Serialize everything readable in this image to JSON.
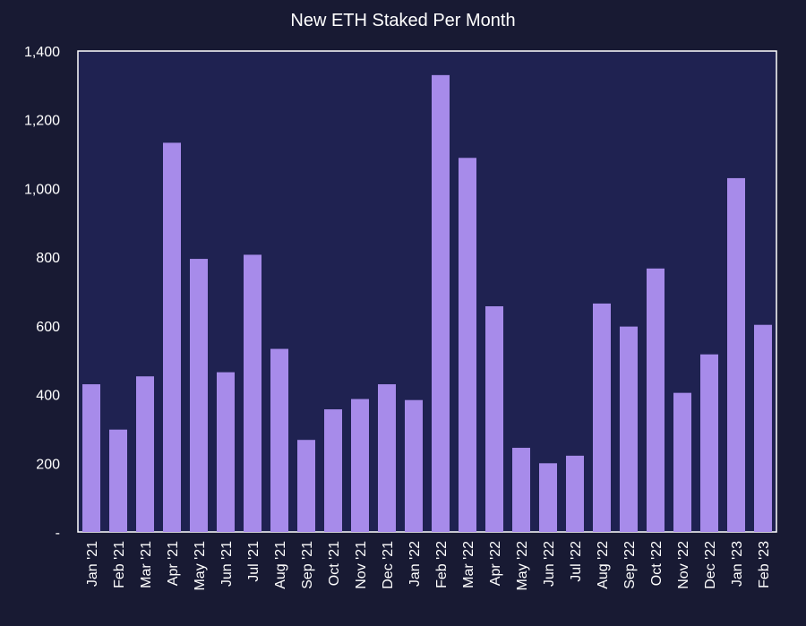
{
  "chart_data": {
    "type": "bar",
    "title": "New ETH Staked Per Month",
    "xlabel": "",
    "ylabel": "",
    "categories": [
      "Jan '21",
      "Feb '21",
      "Mar '21",
      "Apr '21",
      "May '21",
      "Jun '21",
      "Jul '21",
      "Aug '21",
      "Sep '21",
      "Oct '21",
      "Nov '21",
      "Dec '21",
      "Jan '22",
      "Feb '22",
      "Mar '22",
      "Apr '22",
      "May '22",
      "Jun '22",
      "Jul '22",
      "Aug '22",
      "Sep '22",
      "Oct '22",
      "Nov '22",
      "Dec '22",
      "Jan '23",
      "Feb '23"
    ],
    "values": [
      430,
      298,
      453,
      1133,
      795,
      465,
      807,
      533,
      268,
      357,
      387,
      430,
      384,
      1330,
      1089,
      657,
      245,
      200,
      222,
      665,
      598,
      767,
      405,
      517,
      1030,
      603
    ],
    "ylim": [
      0,
      1400
    ],
    "yticks": [
      0,
      200,
      400,
      600,
      800,
      1000,
      1200,
      1400
    ],
    "ytick_labels": [
      "-",
      "200",
      "400",
      "600",
      "800",
      "1,000",
      "1,200",
      "1,400"
    ],
    "grid": false,
    "legend": "none",
    "colors": {
      "background": "#181a33",
      "plot_background": "#1f2251",
      "bar": "#a78bea",
      "axis": "#ffffff",
      "text": "#ffffff"
    }
  }
}
